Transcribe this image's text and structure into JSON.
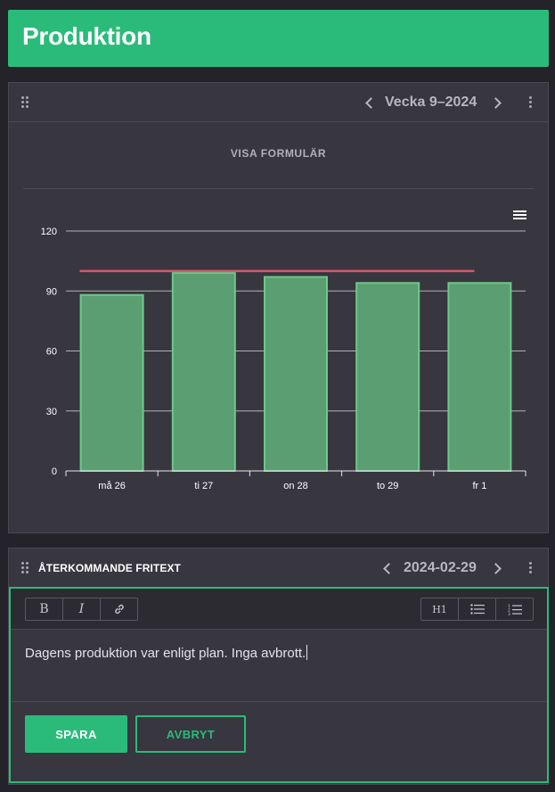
{
  "page": {
    "title": "Produktion"
  },
  "production_card": {
    "week_label": "Vecka 9–2024",
    "show_form_label": "VISA FORMULÄR",
    "menu_icon": "hamburger-menu-icon"
  },
  "chart_data": {
    "type": "bar",
    "categories": [
      "må 26",
      "ti 27",
      "on 28",
      "to 29",
      "fr 1"
    ],
    "values": [
      88,
      99,
      97,
      94,
      94
    ],
    "target_line": 100,
    "yticks": [
      "0",
      "30",
      "60",
      "90",
      "120"
    ],
    "ylim": [
      0,
      120
    ],
    "grid": true,
    "colors": {
      "bar_fill": "#5a9e71",
      "bar_stroke": "#6cc98a",
      "target": "#d9566a",
      "grid": "#c9c7cf",
      "axis": "#e6e4ec"
    }
  },
  "freetext_card": {
    "title": "ÅTERKOMMANDE FRITEXT",
    "date_label": "2024-02-29",
    "toolbar": {
      "bold": "B",
      "italic": "I",
      "heading": "H1"
    },
    "content": "Dagens produktion var enligt plan. Inga avbrott.",
    "save_label": "SPARA",
    "cancel_label": "AVBRYT"
  },
  "colors": {
    "accent": "#2abb7a",
    "background": "#242329",
    "card": "#38363f"
  }
}
